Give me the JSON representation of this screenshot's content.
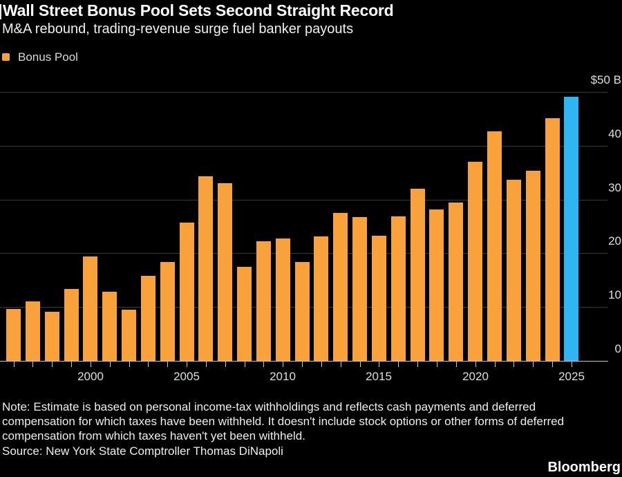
{
  "header": {
    "title": "Wall Street Bonus Pool Sets Second Straight Record",
    "subtitle": "M&A rebound, trading-revenue surge fuel banker payouts"
  },
  "legend": {
    "label": "Bonus Pool",
    "color": "#F9A23B"
  },
  "chart_data": {
    "type": "bar",
    "title": "Wall Street Bonus Pool Sets Second Straight Record",
    "subtitle": "M&A rebound, trading-revenue surge fuel banker payouts",
    "series_name": "Bonus Pool",
    "unit": "$ billions",
    "categories": [
      1996,
      1997,
      1998,
      1999,
      2000,
      2001,
      2002,
      2003,
      2004,
      2005,
      2006,
      2007,
      2008,
      2009,
      2010,
      2011,
      2012,
      2013,
      2014,
      2015,
      2016,
      2017,
      2018,
      2019,
      2020,
      2021,
      2022,
      2023,
      2024,
      2025
    ],
    "values": [
      9.6,
      11.0,
      9.1,
      13.4,
      19.4,
      12.9,
      9.5,
      15.8,
      18.4,
      25.7,
      34.3,
      33.0,
      17.5,
      22.3,
      22.8,
      18.4,
      23.2,
      27.5,
      26.7,
      23.3,
      26.8,
      32.0,
      28.2,
      29.4,
      37.0,
      42.7,
      33.7,
      35.3,
      45.1,
      49.1
    ],
    "ylim": [
      0,
      50
    ],
    "y_ticks": [
      {
        "value": 50,
        "label": "$50 B"
      },
      {
        "value": 40,
        "label": "40"
      },
      {
        "value": 30,
        "label": "30"
      },
      {
        "value": 20,
        "label": "20"
      },
      {
        "value": 10,
        "label": "10"
      },
      {
        "value": 0,
        "label": "0"
      }
    ],
    "x_tick_labels": [
      "2000",
      "2005",
      "2010",
      "2015",
      "2020",
      "2025"
    ],
    "highlight_category": 2025,
    "colors": {
      "bar": "#F9A23B",
      "highlight": "#2FB6F2",
      "grid": "#3A3A3A",
      "axis": "#C9C9C9",
      "tick_label": "#DEDEDE"
    },
    "grid": "horizontal",
    "legend_position": "top-left"
  },
  "footer": {
    "note": "Note: Estimate is based on personal income-tax withholdings and reflects cash payments and deferred compensation for which taxes have been withheld. It doesn't include stock options or other forms of deferred compensation from which taxes haven't yet been withheld.",
    "source": "Source: New York State Comptroller Thomas DiNapoli",
    "brand": "Bloomberg"
  }
}
